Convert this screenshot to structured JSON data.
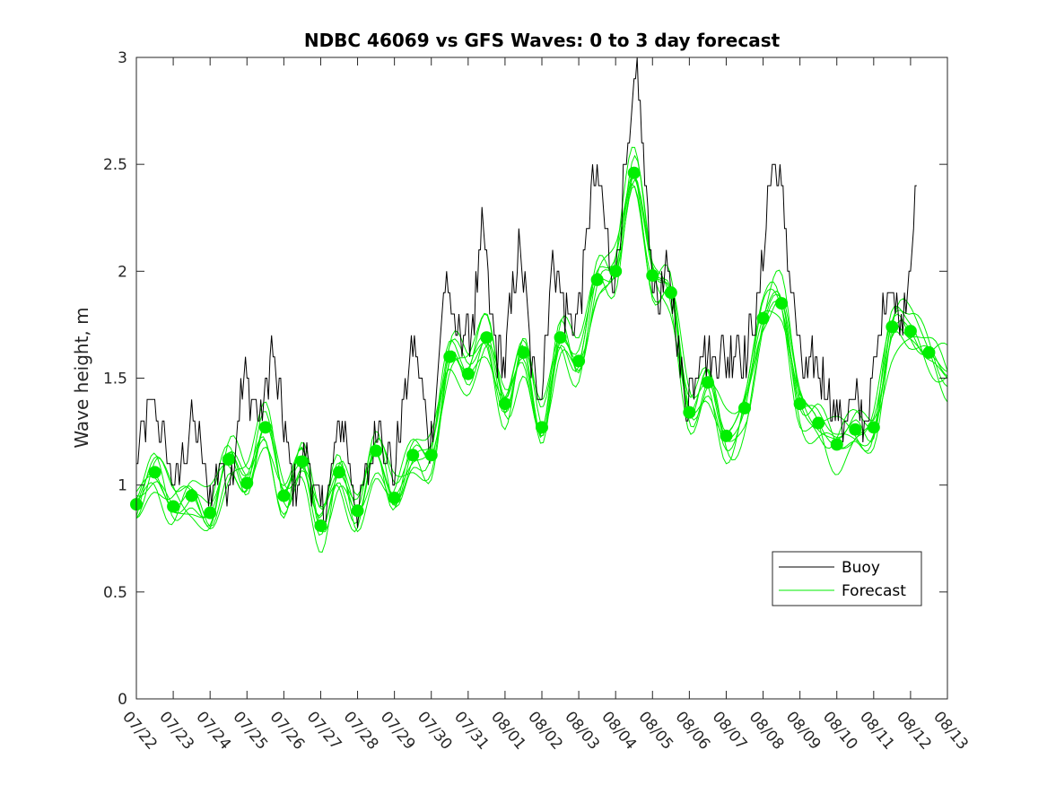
{
  "chart_data": {
    "type": "line",
    "title": "NDBC 46069 vs GFS Waves: 0 to 3 day forecast",
    "xlabel": "",
    "ylabel": "Wave height, m",
    "ylim": [
      0,
      3
    ],
    "yticks": [
      "0",
      "0.5",
      "1",
      "1.5",
      "2",
      "2.5",
      "3"
    ],
    "xticks": [
      "07/22",
      "07/23",
      "07/24",
      "07/25",
      "07/26",
      "07/27",
      "07/28",
      "07/29",
      "07/30",
      "07/31",
      "08/01",
      "08/02",
      "08/03",
      "08/04",
      "08/05",
      "08/06",
      "08/07",
      "08/08",
      "08/09",
      "08/10",
      "08/11",
      "08/12",
      "08/13"
    ],
    "xlim_days": [
      0,
      22
    ],
    "grid": false,
    "legend": {
      "position": "lower-right",
      "entries": [
        "Buoy",
        "Forecast"
      ]
    },
    "colors": {
      "buoy": "#000000",
      "forecast": "#00ee00",
      "axes": "#262626"
    },
    "buoy_control_points": [
      [
        0.0,
        1.1
      ],
      [
        0.15,
        1.2
      ],
      [
        0.3,
        1.3
      ],
      [
        0.45,
        1.4
      ],
      [
        0.6,
        1.3
      ],
      [
        0.75,
        1.2
      ],
      [
        0.9,
        1.1
      ],
      [
        1.0,
        1.05
      ],
      [
        1.1,
        1.0
      ],
      [
        1.25,
        1.1
      ],
      [
        1.4,
        1.2
      ],
      [
        1.5,
        1.3
      ],
      [
        1.6,
        1.25
      ],
      [
        1.75,
        1.15
      ],
      [
        1.9,
        1.0
      ],
      [
        2.0,
        0.95
      ],
      [
        2.15,
        1.05
      ],
      [
        2.3,
        1.1
      ],
      [
        2.45,
        1.0
      ],
      [
        2.6,
        1.1
      ],
      [
        2.75,
        1.3
      ],
      [
        2.9,
        1.45
      ],
      [
        3.0,
        1.5
      ],
      [
        3.15,
        1.4
      ],
      [
        3.3,
        1.3
      ],
      [
        3.45,
        1.35
      ],
      [
        3.55,
        1.5
      ],
      [
        3.65,
        1.65
      ],
      [
        3.75,
        1.55
      ],
      [
        3.9,
        1.4
      ],
      [
        4.0,
        1.3
      ],
      [
        4.15,
        1.1
      ],
      [
        4.3,
        1.0
      ],
      [
        4.45,
        1.05
      ],
      [
        4.6,
        1.2
      ],
      [
        4.75,
        1.05
      ],
      [
        4.9,
        0.95
      ],
      [
        5.0,
        0.9
      ],
      [
        5.1,
        0.85
      ],
      [
        5.25,
        1.0
      ],
      [
        5.4,
        1.2
      ],
      [
        5.55,
        1.3
      ],
      [
        5.7,
        1.2
      ],
      [
        5.85,
        1.0
      ],
      [
        6.0,
        0.92
      ],
      [
        6.15,
        0.95
      ],
      [
        6.3,
        1.05
      ],
      [
        6.45,
        1.2
      ],
      [
        6.6,
        1.3
      ],
      [
        6.75,
        1.2
      ],
      [
        6.9,
        1.1
      ],
      [
        7.0,
        1.05
      ],
      [
        7.1,
        1.2
      ],
      [
        7.25,
        1.4
      ],
      [
        7.4,
        1.55
      ],
      [
        7.55,
        1.65
      ],
      [
        7.7,
        1.5
      ],
      [
        7.85,
        1.3
      ],
      [
        8.0,
        1.2
      ],
      [
        8.1,
        1.4
      ],
      [
        8.2,
        1.6
      ],
      [
        8.3,
        1.8
      ],
      [
        8.4,
        2.0
      ],
      [
        8.5,
        1.9
      ],
      [
        8.6,
        1.7
      ],
      [
        8.75,
        1.75
      ],
      [
        9.0,
        1.7
      ],
      [
        9.15,
        1.8
      ],
      [
        9.3,
        2.0
      ],
      [
        9.4,
        2.2
      ],
      [
        9.5,
        2.05
      ],
      [
        9.6,
        1.8
      ],
      [
        9.75,
        1.65
      ],
      [
        9.9,
        1.6
      ],
      [
        10.0,
        1.55
      ],
      [
        10.1,
        1.75
      ],
      [
        10.25,
        1.95
      ],
      [
        10.4,
        2.1
      ],
      [
        10.55,
        1.9
      ],
      [
        10.7,
        1.6
      ],
      [
        10.85,
        1.45
      ],
      [
        11.0,
        1.5
      ],
      [
        11.15,
        1.8
      ],
      [
        11.25,
        2.0
      ],
      [
        11.35,
        2.05
      ],
      [
        11.5,
        1.95
      ],
      [
        11.65,
        1.8
      ],
      [
        11.8,
        1.75
      ],
      [
        12.0,
        1.8
      ],
      [
        12.15,
        2.05
      ],
      [
        12.3,
        2.3
      ],
      [
        12.45,
        2.45
      ],
      [
        12.6,
        2.35
      ],
      [
        12.75,
        2.15
      ],
      [
        12.9,
        2.0
      ],
      [
        13.0,
        1.95
      ],
      [
        13.1,
        2.2
      ],
      [
        13.25,
        2.45
      ],
      [
        13.4,
        2.6
      ],
      [
        13.5,
        2.75
      ],
      [
        13.6,
        3.0
      ],
      [
        13.7,
        2.65
      ],
      [
        13.8,
        2.4
      ],
      [
        13.9,
        2.25
      ],
      [
        14.0,
        2.0
      ],
      [
        14.15,
        1.85
      ],
      [
        14.3,
        1.9
      ],
      [
        14.45,
        2.0
      ],
      [
        14.6,
        1.8
      ],
      [
        14.75,
        1.55
      ],
      [
        14.9,
        1.4
      ],
      [
        15.0,
        1.45
      ],
      [
        15.15,
        1.55
      ],
      [
        15.3,
        1.65
      ],
      [
        15.45,
        1.6
      ],
      [
        15.6,
        1.55
      ],
      [
        15.75,
        1.6
      ],
      [
        15.9,
        1.65
      ],
      [
        16.0,
        1.55
      ],
      [
        16.15,
        1.6
      ],
      [
        16.3,
        1.7
      ],
      [
        16.45,
        1.6
      ],
      [
        16.6,
        1.65
      ],
      [
        16.75,
        1.75
      ],
      [
        16.9,
        1.85
      ],
      [
        17.0,
        2.05
      ],
      [
        17.1,
        2.3
      ],
      [
        17.25,
        2.5
      ],
      [
        17.4,
        2.45
      ],
      [
        17.55,
        2.3
      ],
      [
        17.7,
        2.05
      ],
      [
        17.85,
        1.8
      ],
      [
        18.0,
        1.6
      ],
      [
        18.15,
        1.5
      ],
      [
        18.3,
        1.55
      ],
      [
        18.45,
        1.6
      ],
      [
        18.6,
        1.5
      ],
      [
        18.75,
        1.45
      ],
      [
        18.9,
        1.4
      ],
      [
        19.0,
        1.35
      ],
      [
        19.15,
        1.3
      ],
      [
        19.3,
        1.35
      ],
      [
        19.45,
        1.4
      ],
      [
        19.6,
        1.35
      ],
      [
        19.75,
        1.3
      ],
      [
        19.9,
        1.4
      ],
      [
        20.0,
        1.5
      ],
      [
        20.15,
        1.7
      ],
      [
        20.3,
        1.85
      ],
      [
        20.45,
        1.95
      ],
      [
        20.6,
        1.8
      ],
      [
        20.75,
        1.75
      ],
      [
        20.9,
        1.95
      ],
      [
        21.0,
        2.1
      ],
      [
        21.1,
        2.3
      ],
      [
        21.2,
        2.4
      ]
    ],
    "forecast_points": [
      [
        0.0,
        0.91
      ],
      [
        0.5,
        1.06
      ],
      [
        1.0,
        0.9
      ],
      [
        1.5,
        0.95
      ],
      [
        2.0,
        0.87
      ],
      [
        2.5,
        1.12
      ],
      [
        3.0,
        1.01
      ],
      [
        3.5,
        1.27
      ],
      [
        4.0,
        0.95
      ],
      [
        4.5,
        1.11
      ],
      [
        5.0,
        0.81
      ],
      [
        5.5,
        1.06
      ],
      [
        6.0,
        0.88
      ],
      [
        6.5,
        1.16
      ],
      [
        7.0,
        0.94
      ],
      [
        7.5,
        1.14
      ],
      [
        8.0,
        1.14
      ],
      [
        8.5,
        1.6
      ],
      [
        9.0,
        1.52
      ],
      [
        9.5,
        1.69
      ],
      [
        10.0,
        1.38
      ],
      [
        10.5,
        1.62
      ],
      [
        11.0,
        1.27
      ],
      [
        11.5,
        1.69
      ],
      [
        12.0,
        1.58
      ],
      [
        12.5,
        1.96
      ],
      [
        13.0,
        2.0
      ],
      [
        13.5,
        2.46
      ],
      [
        14.0,
        1.98
      ],
      [
        14.5,
        1.9
      ],
      [
        15.0,
        1.34
      ],
      [
        15.5,
        1.48
      ],
      [
        16.0,
        1.23
      ],
      [
        16.5,
        1.36
      ],
      [
        17.0,
        1.78
      ],
      [
        17.5,
        1.85
      ],
      [
        18.0,
        1.38
      ],
      [
        18.5,
        1.29
      ],
      [
        19.0,
        1.19
      ],
      [
        19.5,
        1.26
      ],
      [
        20.0,
        1.27
      ],
      [
        20.5,
        1.74
      ],
      [
        21.0,
        1.72
      ],
      [
        21.5,
        1.62
      ],
      [
        22.0,
        1.52
      ]
    ],
    "forecast_run_count": 8
  }
}
